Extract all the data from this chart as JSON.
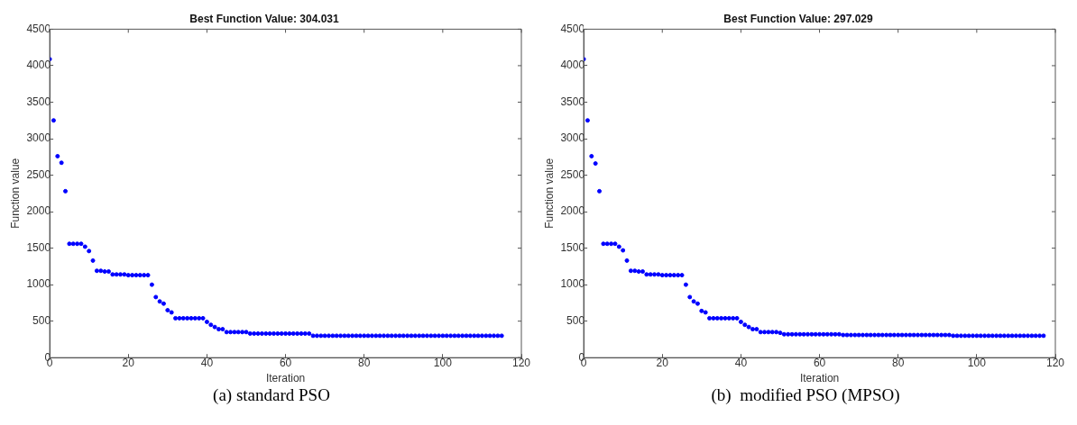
{
  "chart_data": [
    {
      "type": "scatter",
      "title": "Best Function Value: 304.031",
      "xlabel": "Iteration",
      "ylabel": "Function value",
      "annotations": [
        "(a) standard PSO"
      ],
      "marker": "circle",
      "grid": false,
      "legend": false,
      "xlim": [
        0,
        120
      ],
      "xticks": [
        0,
        20,
        40,
        60,
        80,
        100,
        120
      ],
      "ylim": [
        0,
        4500
      ],
      "yticks": [
        0,
        500,
        1000,
        1500,
        2000,
        2500,
        3000,
        3500,
        4000,
        4500
      ],
      "series": [
        {
          "color": "#0000ff",
          "x": [
            0,
            1,
            2,
            3,
            4,
            5,
            6,
            7,
            8,
            9,
            10,
            11,
            12,
            13,
            14,
            15,
            16,
            17,
            18,
            19,
            20,
            21,
            22,
            23,
            24,
            25,
            26,
            27,
            28,
            29,
            30,
            31,
            32,
            33,
            34,
            35,
            36,
            37,
            38,
            39,
            40,
            41,
            42,
            43,
            44,
            45,
            46,
            47,
            48,
            49,
            50,
            51,
            52,
            53,
            54,
            55,
            56,
            57,
            58,
            59,
            60,
            61,
            62,
            63,
            64,
            65,
            66,
            67,
            68,
            69,
            70,
            71,
            72,
            73,
            74,
            75,
            76,
            77,
            78,
            79,
            80,
            81,
            82,
            83,
            84,
            85,
            86,
            87,
            88,
            89,
            90,
            91,
            92,
            93,
            94,
            95,
            96,
            97,
            98,
            99,
            100,
            101,
            102,
            103,
            104,
            105,
            106,
            107,
            108,
            109,
            110,
            111,
            112,
            113,
            114,
            115
          ],
          "values": [
            4090,
            3250,
            2760,
            2670,
            2280,
            1560,
            1560,
            1560,
            1560,
            1520,
            1460,
            1330,
            1190,
            1190,
            1180,
            1180,
            1140,
            1140,
            1140,
            1140,
            1130,
            1130,
            1130,
            1130,
            1130,
            1130,
            1000,
            830,
            770,
            740,
            650,
            620,
            540,
            540,
            540,
            540,
            540,
            540,
            540,
            540,
            490,
            450,
            420,
            390,
            390,
            350,
            350,
            350,
            350,
            350,
            350,
            330,
            330,
            330,
            330,
            330,
            330,
            330,
            330,
            330,
            330,
            330,
            330,
            330,
            330,
            330,
            330,
            300,
            300,
            300,
            300,
            300,
            300,
            300,
            300,
            300,
            300,
            300,
            300,
            300,
            300,
            300,
            300,
            300,
            300,
            300,
            300,
            300,
            300,
            300,
            300,
            300,
            300,
            300,
            300,
            300,
            300,
            300,
            300,
            300,
            300,
            300,
            300,
            300,
            300,
            300,
            300,
            300,
            300,
            300,
            300,
            300,
            300,
            300,
            300,
            300
          ]
        }
      ]
    },
    {
      "type": "scatter",
      "title": "Best Function Value: 297.029",
      "xlabel": "Iteration",
      "ylabel": "Function value",
      "annotations": [
        "(b)  modified PSO (MPSO)"
      ],
      "marker": "circle",
      "grid": false,
      "legend": false,
      "xlim": [
        0,
        120
      ],
      "xticks": [
        0,
        20,
        40,
        60,
        80,
        100,
        120
      ],
      "ylim": [
        0,
        4500
      ],
      "yticks": [
        0,
        500,
        1000,
        1500,
        2000,
        2500,
        3000,
        3500,
        4000,
        4500
      ],
      "series": [
        {
          "color": "#0000ff",
          "x": [
            0,
            1,
            2,
            3,
            4,
            5,
            6,
            7,
            8,
            9,
            10,
            11,
            12,
            13,
            14,
            15,
            16,
            17,
            18,
            19,
            20,
            21,
            22,
            23,
            24,
            25,
            26,
            27,
            28,
            29,
            30,
            31,
            32,
            33,
            34,
            35,
            36,
            37,
            38,
            39,
            40,
            41,
            42,
            43,
            44,
            45,
            46,
            47,
            48,
            49,
            50,
            51,
            52,
            53,
            54,
            55,
            56,
            57,
            58,
            59,
            60,
            61,
            62,
            63,
            64,
            65,
            66,
            67,
            68,
            69,
            70,
            71,
            72,
            73,
            74,
            75,
            76,
            77,
            78,
            79,
            80,
            81,
            82,
            83,
            84,
            85,
            86,
            87,
            88,
            89,
            90,
            91,
            92,
            93,
            94,
            95,
            96,
            97,
            98,
            99,
            100,
            101,
            102,
            103,
            104,
            105,
            106,
            107,
            108,
            109,
            110,
            111,
            112,
            113,
            114,
            115,
            116,
            117
          ],
          "values": [
            4090,
            3250,
            2760,
            2660,
            2280,
            1560,
            1560,
            1560,
            1560,
            1520,
            1470,
            1330,
            1190,
            1190,
            1180,
            1180,
            1140,
            1140,
            1140,
            1140,
            1130,
            1130,
            1130,
            1130,
            1130,
            1130,
            1000,
            830,
            770,
            740,
            640,
            620,
            540,
            540,
            540,
            540,
            540,
            540,
            540,
            540,
            490,
            450,
            420,
            390,
            390,
            350,
            350,
            350,
            350,
            350,
            340,
            320,
            320,
            320,
            320,
            320,
            320,
            320,
            320,
            320,
            320,
            320,
            320,
            320,
            320,
            320,
            310,
            310,
            310,
            310,
            310,
            310,
            310,
            310,
            310,
            310,
            310,
            310,
            310,
            310,
            310,
            310,
            310,
            310,
            310,
            310,
            310,
            310,
            310,
            310,
            310,
            310,
            310,
            310,
            300,
            300,
            300,
            300,
            300,
            300,
            300,
            300,
            300,
            300,
            300,
            300,
            300,
            300,
            300,
            300,
            300,
            300,
            300,
            300,
            300,
            300,
            300,
            300
          ]
        }
      ]
    }
  ]
}
